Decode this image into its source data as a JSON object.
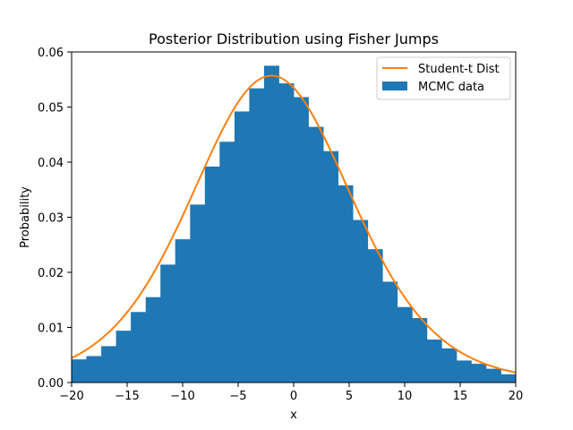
{
  "chart_data": {
    "type": "bar",
    "title": "Posterior Distribution using Fisher Jumps",
    "xlabel": "x",
    "ylabel": "Probability",
    "xlim": [
      -20,
      20
    ],
    "ylim": [
      0,
      0.06
    ],
    "xticks": [
      -20,
      -15,
      -10,
      -5,
      0,
      5,
      10,
      15,
      20
    ],
    "xtick_labels": [
      "−20",
      "−15",
      "−10",
      "−5",
      "0",
      "5",
      "10",
      "15",
      "20"
    ],
    "yticks": [
      0,
      0.01,
      0.02,
      0.03,
      0.04,
      0.05,
      0.06
    ],
    "ytick_labels": [
      "0.00",
      "0.01",
      "0.02",
      "0.03",
      "0.04",
      "0.05",
      "0.06"
    ],
    "grid": false,
    "legend_position": "top-right",
    "histogram": {
      "name": "MCMC data",
      "color": "#1f77b4",
      "bin_edges": [
        -20,
        -18.67,
        -17.33,
        -16,
        -14.67,
        -13.33,
        -12,
        -10.67,
        -9.33,
        -8,
        -6.67,
        -5.33,
        -4,
        -2.67,
        -1.33,
        0,
        1.33,
        2.67,
        4,
        5.33,
        6.67,
        8,
        9.33,
        10.67,
        12,
        13.33,
        14.67,
        16,
        17.33,
        18.67,
        20
      ],
      "values": [
        0.0042,
        0.0048,
        0.0066,
        0.0094,
        0.0128,
        0.0155,
        0.0214,
        0.026,
        0.0323,
        0.0392,
        0.0437,
        0.0492,
        0.0534,
        0.0575,
        0.0543,
        0.0518,
        0.0464,
        0.042,
        0.0358,
        0.0295,
        0.0242,
        0.0183,
        0.0137,
        0.0117,
        0.0078,
        0.0062,
        0.004,
        0.0034,
        0.0025,
        0.0015
      ]
    },
    "curve": {
      "name": "Student-t Dist",
      "color": "#ff7f0e",
      "peak_x": -2,
      "peak_y": 0.0557,
      "scale": 7.4,
      "dof": 9,
      "x_start": -20,
      "x_end": 20
    }
  }
}
